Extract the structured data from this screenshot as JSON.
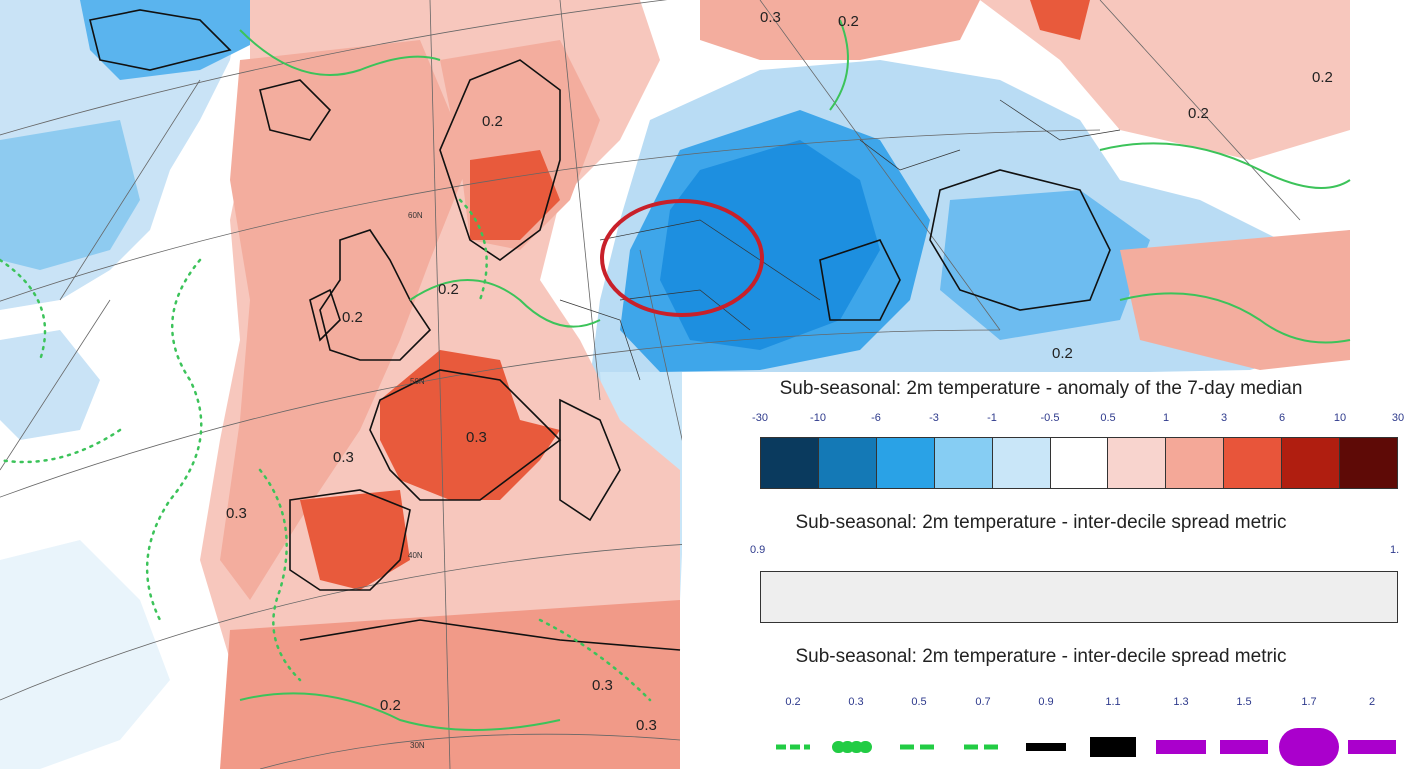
{
  "map": {
    "contour_labels": [
      "0.3",
      "0.2",
      "0.2",
      "0.2",
      "0.2",
      "0.3",
      "0.3",
      "0.3",
      "0.2",
      "0.2",
      "0.2",
      "0.3",
      "0.2",
      "0.3"
    ],
    "latitude_labels": [
      "50N",
      "40N",
      "30N",
      "60N"
    ],
    "colors": {
      "cold_strong": "#1d8fe0",
      "cold": "#5ab4ee",
      "cool": "#b9dcf4",
      "neutral": "#ffffff",
      "warm_light": "#f7c7bd",
      "warm": "#f19a88",
      "hot": "#e85a3c",
      "highlight_circle": "#c8202a",
      "spread_contour": "#3cc35a"
    }
  },
  "legend": {
    "anomaly": {
      "title": "Sub-seasonal: 2m temperature - anomaly of the 7-day median",
      "ticks": [
        "-30",
        "-10",
        "-6",
        "-3",
        "-1",
        "-0.5",
        "0.5",
        "1",
        "3",
        "6",
        "10",
        "30"
      ],
      "colors": [
        "#0a3a5e",
        "#1479b6",
        "#2aa2e6",
        "#86cdf3",
        "#c9e6f8",
        "#ffffff",
        "#f8d4ce",
        "#f4a898",
        "#e8553a",
        "#b01e10",
        "#5e0a06"
      ]
    },
    "spread_shade": {
      "title": "Sub-seasonal: 2m temperature - inter-decile spread metric",
      "ticks": [
        "0.9",
        "1."
      ],
      "color": "#eeeeee"
    },
    "spread_lines": {
      "title": "Sub-seasonal: 2m temperature - inter-decile spread metric",
      "ticks": [
        "0.2",
        "0.3",
        "0.5",
        "0.7",
        "0.9",
        "1.1",
        "1.3",
        "1.5",
        "1.7",
        "2"
      ],
      "line_colors": [
        "#22cc44",
        "#22cc44",
        "#22cc44",
        "#22cc44",
        "#000000",
        "#000000",
        "#aa00cc",
        "#aa00cc",
        "#aa00cc",
        "#aa00cc"
      ]
    }
  }
}
